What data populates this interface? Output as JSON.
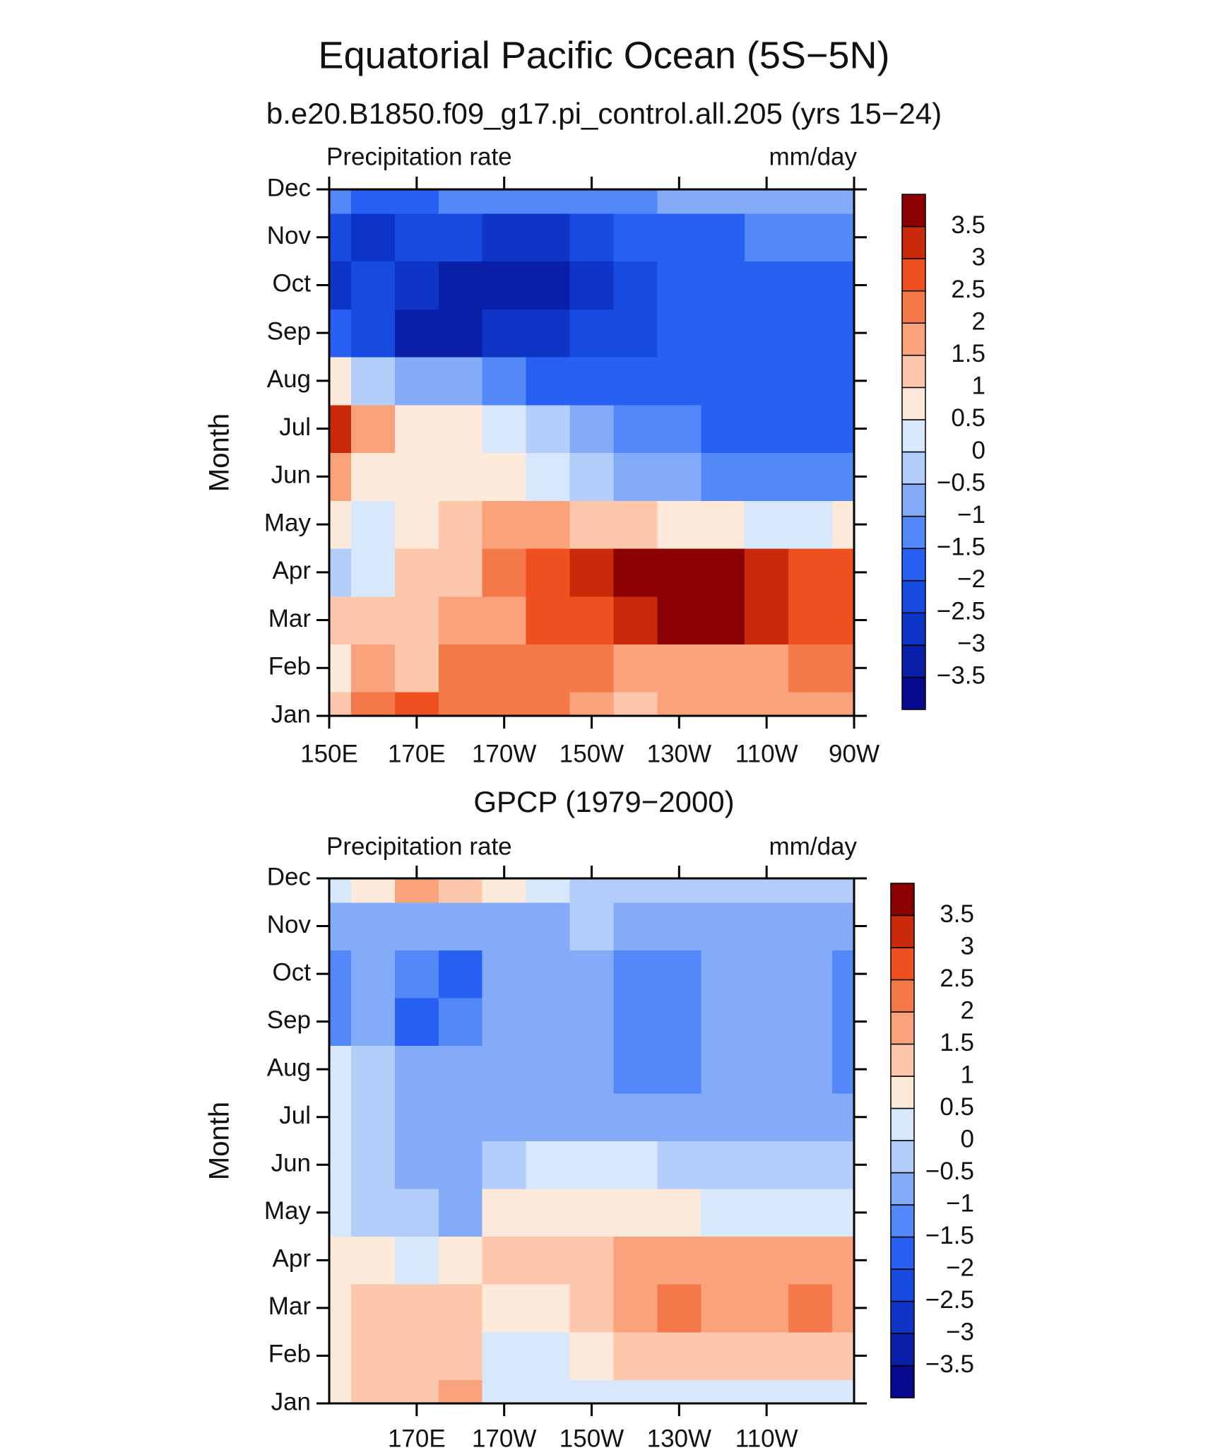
{
  "chart_data": [
    {
      "type": "heatmap",
      "title": "Equatorial Pacific Ocean (5S−5N)",
      "subtitle": "b.e20.B1850.f09_g17.pi_control.all.205 (yrs 15−24)",
      "left_label": "Precipitation rate",
      "right_label": "mm/day",
      "ylabel": "Month",
      "x": [
        150,
        160,
        170,
        180,
        190,
        200,
        210,
        220,
        230,
        240,
        250,
        260,
        270
      ],
      "y": [
        1,
        2,
        3,
        4,
        5,
        6,
        7,
        8,
        9,
        10,
        11,
        12
      ],
      "values": [
        [
          1,
          2,
          2.5,
          2,
          2,
          2,
          1.5,
          1.2,
          1.5,
          1.5,
          1.5,
          1.5,
          1.5
        ],
        [
          0.5,
          1.5,
          1.2,
          2,
          2,
          2.2,
          2,
          1.5,
          1.5,
          1.5,
          1.5,
          2,
          2
        ],
        [
          1,
          1,
          1,
          1.5,
          1.8,
          2.5,
          2.8,
          3.2,
          3.5,
          3.6,
          3.2,
          2.7,
          2.5
        ],
        [
          -0.3,
          0.3,
          1,
          1.2,
          2,
          2.5,
          3,
          3.5,
          3.6,
          3.5,
          3,
          2.7,
          2.5
        ],
        [
          0.5,
          0.3,
          0.7,
          1,
          1.5,
          1.5,
          1.2,
          1,
          0.7,
          0.5,
          0.3,
          0.2,
          0.5
        ],
        [
          1.5,
          0.5,
          0.8,
          0.7,
          0.5,
          0.2,
          -0.3,
          -0.7,
          -1,
          -1.2,
          -1.2,
          -1.2,
          -1.2
        ],
        [
          3,
          1.5,
          0.8,
          0.5,
          0,
          -0.5,
          -1,
          -1.3,
          -1.5,
          -1.8,
          -2,
          -2,
          -2
        ],
        [
          0.5,
          -0.5,
          -1,
          -1,
          -1.5,
          -1.8,
          -2,
          -2,
          -2,
          -2,
          -2,
          -2,
          -2
        ],
        [
          -2,
          -2.5,
          -3.2,
          -3.2,
          -3,
          -3,
          -2.5,
          -2.2,
          -2,
          -2,
          -2,
          -2,
          -2
        ],
        [
          -2.8,
          -2.5,
          -3,
          -3.2,
          -3.3,
          -3.3,
          -2.8,
          -2.2,
          -2,
          -2,
          -2,
          -2,
          -2
        ],
        [
          -2.5,
          -3,
          -2.5,
          -2.5,
          -3,
          -3,
          -2.5,
          -2,
          -1.8,
          -1.6,
          -1.5,
          -1.5,
          -1.5
        ],
        [
          -1.5,
          -2,
          -2,
          -1.5,
          -1.5,
          -1.5,
          -1.5,
          -1.2,
          -1,
          -1,
          -0.8,
          -0.7,
          -0.6
        ]
      ],
      "xlim": [
        150,
        270
      ],
      "xticks": [
        {
          "value": 150,
          "label": "150E"
        },
        {
          "value": 170,
          "label": "170E"
        },
        {
          "value": 190,
          "label": "170W"
        },
        {
          "value": 210,
          "label": "150W"
        },
        {
          "value": 230,
          "label": "130W"
        },
        {
          "value": 250,
          "label": "110W"
        },
        {
          "value": 270,
          "label": "90W"
        }
      ],
      "ylim": [
        1,
        12
      ],
      "yticks": [
        {
          "value": 1,
          "label": "Jan"
        },
        {
          "value": 2,
          "label": "Feb"
        },
        {
          "value": 3,
          "label": "Mar"
        },
        {
          "value": 4,
          "label": "Apr"
        },
        {
          "value": 5,
          "label": "May"
        },
        {
          "value": 6,
          "label": "Jun"
        },
        {
          "value": 7,
          "label": "Jul"
        },
        {
          "value": 8,
          "label": "Aug"
        },
        {
          "value": 9,
          "label": "Sep"
        },
        {
          "value": 10,
          "label": "Oct"
        },
        {
          "value": 11,
          "label": "Nov"
        },
        {
          "value": 12,
          "label": "Dec"
        }
      ],
      "levels": [
        {
          "value": -3.5,
          "label": "−3.5"
        },
        {
          "value": -3,
          "label": "−3"
        },
        {
          "value": -2.5,
          "label": "−2.5"
        },
        {
          "value": -2,
          "label": "−2"
        },
        {
          "value": -1.5,
          "label": "−1.5"
        },
        {
          "value": -1,
          "label": "−1"
        },
        {
          "value": -0.5,
          "label": "−0.5"
        },
        0,
        0.5,
        1,
        1.5,
        2,
        2.5,
        3,
        3.5
      ],
      "colors": [
        "#07098f",
        "#0a1fa8",
        "#0e35c6",
        "#174bdf",
        "#2860f3",
        "#5288f7",
        "#84abf8",
        "#b3cdfa",
        "#d7e8fc",
        "#fde9da",
        "#fcc7aa",
        "#faa27b",
        "#f5784a",
        "#ee5020",
        "#c92a09",
        "#8b0000"
      ]
    },
    {
      "type": "heatmap",
      "subtitle": "GPCP (1979−2000)",
      "left_label": "Precipitation rate",
      "right_label": "mm/day",
      "ylabel": "Month",
      "x": [
        150,
        160,
        170,
        180,
        190,
        200,
        210,
        220,
        230,
        240,
        250,
        260,
        270
      ],
      "y": [
        1,
        2,
        3,
        4,
        5,
        6,
        7,
        8,
        9,
        10,
        11,
        12
      ],
      "values": [
        [
          0.8,
          1.2,
          1.3,
          1.5,
          0.2,
          0.1,
          0.2,
          0.2,
          0.3,
          0.2,
          0.2,
          0.2,
          0.3
        ],
        [
          0.8,
          1.2,
          1,
          1.2,
          0.3,
          0.3,
          0.7,
          1,
          1.2,
          1.2,
          1.1,
          1.2,
          1.3
        ],
        [
          0.7,
          1,
          1.1,
          1.2,
          0.5,
          0.8,
          1.2,
          1.6,
          2,
          1.7,
          1.7,
          2,
          1.8
        ],
        [
          0.5,
          0.5,
          0.3,
          0.5,
          1,
          1,
          1.2,
          1.7,
          1.8,
          1.8,
          1.5,
          1.5,
          1.5
        ],
        [
          0.2,
          -0.2,
          -0.4,
          -0.6,
          0.5,
          0.7,
          0.7,
          0.6,
          0.5,
          0.3,
          0.1,
          0,
          0.1
        ],
        [
          0.4,
          -0.3,
          -0.6,
          -0.7,
          -0.2,
          0.3,
          0.2,
          0,
          -0.2,
          -0.4,
          -0.5,
          -0.5,
          -0.5
        ],
        [
          0.4,
          -0.3,
          -0.7,
          -0.7,
          -0.7,
          -0.7,
          -0.8,
          -0.8,
          -0.8,
          -0.7,
          -0.7,
          -0.8,
          -1
        ],
        [
          0.3,
          -0.5,
          -0.8,
          -0.8,
          -0.8,
          -0.8,
          -1,
          -1.1,
          -1.1,
          -0.8,
          -0.8,
          -0.9,
          -1.2
        ],
        [
          -1.5,
          -1,
          -1.8,
          -1.5,
          -1,
          -0.8,
          -1,
          -1.2,
          -1.2,
          -1,
          -1,
          -1,
          -1.2
        ],
        [
          -1.2,
          -1,
          -1.5,
          -1.6,
          -1,
          -0.8,
          -1,
          -1.2,
          -1.2,
          -1,
          -1,
          -1,
          -1.2
        ],
        [
          -1,
          -1,
          -1,
          -0.7,
          -0.7,
          -0.7,
          -0.5,
          -0.7,
          -0.7,
          -0.7,
          -0.7,
          -0.7,
          -0.8
        ],
        [
          0,
          0.5,
          1.5,
          1,
          0.5,
          0,
          -0.3,
          -0.3,
          -0.5,
          -0.5,
          -0.5,
          -0.5,
          -0.5
        ]
      ],
      "xlim": [
        150,
        270
      ],
      "xticks": [
        {
          "value": 170,
          "label": "170E"
        },
        {
          "value": 190,
          "label": "170W"
        },
        {
          "value": 210,
          "label": "150W"
        },
        {
          "value": 230,
          "label": "130W"
        },
        {
          "value": 250,
          "label": "110W"
        }
      ],
      "ylim": [
        1,
        12
      ],
      "yticks": [
        {
          "value": 1,
          "label": "Jan"
        },
        {
          "value": 2,
          "label": "Feb"
        },
        {
          "value": 3,
          "label": "Mar"
        },
        {
          "value": 4,
          "label": "Apr"
        },
        {
          "value": 5,
          "label": "May"
        },
        {
          "value": 6,
          "label": "Jun"
        },
        {
          "value": 7,
          "label": "Jul"
        },
        {
          "value": 8,
          "label": "Aug"
        },
        {
          "value": 9,
          "label": "Sep"
        },
        {
          "value": 10,
          "label": "Oct"
        },
        {
          "value": 11,
          "label": "Nov"
        },
        {
          "value": 12,
          "label": "Dec"
        }
      ],
      "levels": [
        {
          "value": -3.5,
          "label": "−3.5"
        },
        {
          "value": -3,
          "label": "−3"
        },
        {
          "value": -2.5,
          "label": "−2.5"
        },
        {
          "value": -2,
          "label": "−2"
        },
        {
          "value": -1.5,
          "label": "−1.5"
        },
        {
          "value": -1,
          "label": "−1"
        },
        {
          "value": -0.5,
          "label": "−0.5"
        },
        0,
        0.5,
        1,
        1.5,
        2,
        2.5,
        3,
        3.5
      ],
      "colors": [
        "#07098f",
        "#0a1fa8",
        "#0e35c6",
        "#174bdf",
        "#2860f3",
        "#5288f7",
        "#84abf8",
        "#b3cdfa",
        "#d7e8fc",
        "#fde9da",
        "#fcc7aa",
        "#faa27b",
        "#f5784a",
        "#ee5020",
        "#c92a09",
        "#8b0000"
      ]
    }
  ]
}
